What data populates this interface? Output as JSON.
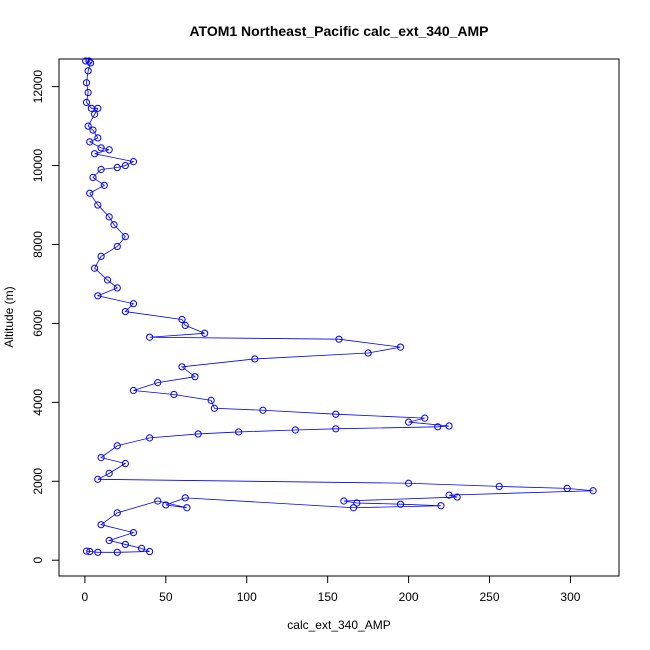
{
  "chart_data": {
    "type": "scatter",
    "title": "ATOM1 Northeast_Pacific calc_ext_340_AMP",
    "xlabel": "calc_ext_340_AMP",
    "ylabel": "Altitude (m)",
    "xlim": [
      -16,
      330
    ],
    "ylim": [
      -400,
      12700
    ],
    "x_ticks": [
      0,
      50,
      100,
      150,
      200,
      250,
      300
    ],
    "y_ticks": [
      0,
      2000,
      4000,
      6000,
      8000,
      10000,
      12000
    ],
    "x_tick_labels": [
      "0",
      "50",
      "100",
      "150",
      "200",
      "250",
      "300"
    ],
    "y_tick_labels": [
      "0",
      "2000",
      "4000",
      "6000",
      "8000",
      "10000",
      "12000"
    ],
    "grid": false,
    "legend": "none",
    "marker": "open-circle",
    "connected": true,
    "series_color": "#0000ff",
    "points": [
      {
        "x": 0.5,
        "y": 12650
      },
      {
        "x": 2.5,
        "y": 12650
      },
      {
        "x": 3.5,
        "y": 12600
      },
      {
        "x": 2,
        "y": 12400
      },
      {
        "x": 1,
        "y": 12100
      },
      {
        "x": 2,
        "y": 11850
      },
      {
        "x": 1,
        "y": 11600
      },
      {
        "x": 4,
        "y": 11450
      },
      {
        "x": 8,
        "y": 11450
      },
      {
        "x": 6,
        "y": 11300
      },
      {
        "x": 2,
        "y": 11000
      },
      {
        "x": 5,
        "y": 10900
      },
      {
        "x": 8,
        "y": 10700
      },
      {
        "x": 3,
        "y": 10600
      },
      {
        "x": 10,
        "y": 10450
      },
      {
        "x": 15,
        "y": 10400
      },
      {
        "x": 6,
        "y": 10300
      },
      {
        "x": 30,
        "y": 10100
      },
      {
        "x": 25,
        "y": 10000
      },
      {
        "x": 20,
        "y": 9950
      },
      {
        "x": 10,
        "y": 9900
      },
      {
        "x": 5,
        "y": 9700
      },
      {
        "x": 12,
        "y": 9500
      },
      {
        "x": 3,
        "y": 9300
      },
      {
        "x": 8,
        "y": 9000
      },
      {
        "x": 15,
        "y": 8700
      },
      {
        "x": 18,
        "y": 8500
      },
      {
        "x": 25,
        "y": 8200
      },
      {
        "x": 20,
        "y": 7950
      },
      {
        "x": 10,
        "y": 7700
      },
      {
        "x": 6,
        "y": 7400
      },
      {
        "x": 14,
        "y": 7100
      },
      {
        "x": 20,
        "y": 6900
      },
      {
        "x": 8,
        "y": 6700
      },
      {
        "x": 30,
        "y": 6500
      },
      {
        "x": 25,
        "y": 6300
      },
      {
        "x": 60,
        "y": 6100
      },
      {
        "x": 62,
        "y": 5950
      },
      {
        "x": 74,
        "y": 5750
      },
      {
        "x": 40,
        "y": 5650
      },
      {
        "x": 157,
        "y": 5600
      },
      {
        "x": 195,
        "y": 5400
      },
      {
        "x": 175,
        "y": 5250
      },
      {
        "x": 105,
        "y": 5100
      },
      {
        "x": 60,
        "y": 4900
      },
      {
        "x": 68,
        "y": 4650
      },
      {
        "x": 45,
        "y": 4500
      },
      {
        "x": 30,
        "y": 4300
      },
      {
        "x": 55,
        "y": 4200
      },
      {
        "x": 78,
        "y": 4050
      },
      {
        "x": 80,
        "y": 3850
      },
      {
        "x": 110,
        "y": 3800
      },
      {
        "x": 155,
        "y": 3700
      },
      {
        "x": 210,
        "y": 3600
      },
      {
        "x": 200,
        "y": 3500
      },
      {
        "x": 225,
        "y": 3400
      },
      {
        "x": 218,
        "y": 3380
      },
      {
        "x": 155,
        "y": 3330
      },
      {
        "x": 130,
        "y": 3300
      },
      {
        "x": 95,
        "y": 3250
      },
      {
        "x": 70,
        "y": 3200
      },
      {
        "x": 40,
        "y": 3100
      },
      {
        "x": 20,
        "y": 2900
      },
      {
        "x": 10,
        "y": 2600
      },
      {
        "x": 25,
        "y": 2450
      },
      {
        "x": 15,
        "y": 2200
      },
      {
        "x": 8,
        "y": 2050
      },
      {
        "x": 200,
        "y": 1950
      },
      {
        "x": 256,
        "y": 1870
      },
      {
        "x": 298,
        "y": 1820
      },
      {
        "x": 314,
        "y": 1760
      },
      {
        "x": 225,
        "y": 1650
      },
      {
        "x": 230,
        "y": 1600
      },
      {
        "x": 160,
        "y": 1500
      },
      {
        "x": 168,
        "y": 1450
      },
      {
        "x": 195,
        "y": 1420
      },
      {
        "x": 220,
        "y": 1380
      },
      {
        "x": 166,
        "y": 1330
      },
      {
        "x": 62,
        "y": 1580
      },
      {
        "x": 50,
        "y": 1400
      },
      {
        "x": 63,
        "y": 1330
      },
      {
        "x": 45,
        "y": 1500
      },
      {
        "x": 20,
        "y": 1200
      },
      {
        "x": 10,
        "y": 900
      },
      {
        "x": 30,
        "y": 700
      },
      {
        "x": 15,
        "y": 500
      },
      {
        "x": 25,
        "y": 400
      },
      {
        "x": 35,
        "y": 300
      },
      {
        "x": 40,
        "y": 220
      },
      {
        "x": 20,
        "y": 200
      },
      {
        "x": 8,
        "y": 200
      },
      {
        "x": 3,
        "y": 220
      },
      {
        "x": 1,
        "y": 230
      }
    ]
  }
}
